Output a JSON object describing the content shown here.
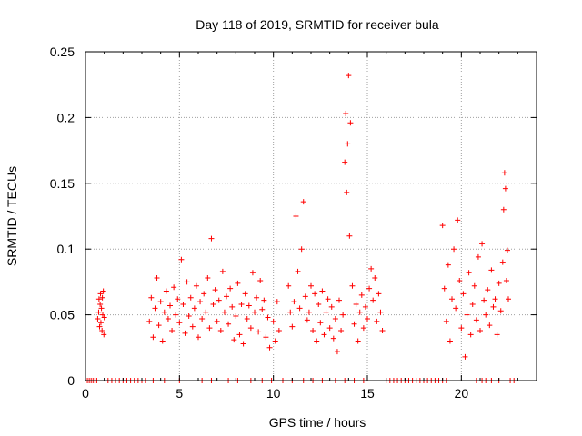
{
  "chart_data": {
    "type": "scatter",
    "title": "Day 118 of 2019, SRMTID for receiver bula",
    "xlabel": "GPS time / hours",
    "ylabel": "SRMTID / TECUs",
    "xlim": [
      0,
      24
    ],
    "ylim": [
      0,
      0.25
    ],
    "x_ticks": [
      0,
      5,
      10,
      15,
      20
    ],
    "x_tick_labels": [
      "0",
      "5",
      "10",
      "15",
      "20"
    ],
    "y_ticks": [
      0,
      0.05,
      0.1,
      0.15,
      0.2,
      0.25
    ],
    "y_tick_labels": [
      "0",
      "0.05",
      "0.1",
      "0.15",
      "0.2",
      "0.25"
    ],
    "grid": true,
    "marker": "+",
    "color": "#ff0000",
    "series": [
      {
        "name": "SRMTID",
        "points": [
          [
            0.1,
            0
          ],
          [
            0.2,
            0
          ],
          [
            0.3,
            0
          ],
          [
            0.4,
            0
          ],
          [
            0.5,
            0
          ],
          [
            0.6,
            0
          ],
          [
            0.65,
            0.047
          ],
          [
            0.7,
            0.052
          ],
          [
            0.72,
            0.062
          ],
          [
            0.75,
            0.041
          ],
          [
            0.78,
            0.058
          ],
          [
            0.8,
            0.066
          ],
          [
            0.82,
            0.044
          ],
          [
            0.85,
            0.055
          ],
          [
            0.88,
            0.038
          ],
          [
            0.9,
            0.063
          ],
          [
            0.92,
            0.05
          ],
          [
            0.95,
            0.068
          ],
          [
            0.98,
            0.035
          ],
          [
            1.0,
            0.048
          ],
          [
            1.2,
            0
          ],
          [
            1.4,
            0
          ],
          [
            1.6,
            0
          ],
          [
            1.8,
            0
          ],
          [
            2.0,
            0
          ],
          [
            2.2,
            0
          ],
          [
            2.4,
            0
          ],
          [
            2.6,
            0
          ],
          [
            2.8,
            0
          ],
          [
            3.0,
            0
          ],
          [
            3.2,
            0
          ],
          [
            3.4,
            0.045
          ],
          [
            3.5,
            0.063
          ],
          [
            3.6,
            0.033
          ],
          [
            3.7,
            0.055
          ],
          [
            3.8,
            0.078
          ],
          [
            3.9,
            0.042
          ],
          [
            4.0,
            0.06
          ],
          [
            4.1,
            0.03
          ],
          [
            4.2,
            0.052
          ],
          [
            4.3,
            0.068
          ],
          [
            4.4,
            0.047
          ],
          [
            4.5,
            0.057
          ],
          [
            4.6,
            0.038
          ],
          [
            4.7,
            0.071
          ],
          [
            4.8,
            0.05
          ],
          [
            4.9,
            0.062
          ],
          [
            5.0,
            0.044
          ],
          [
            5.1,
            0.092
          ],
          [
            5.2,
            0.058
          ],
          [
            5.3,
            0.036
          ],
          [
            5.4,
            0.075
          ],
          [
            5.5,
            0.049
          ],
          [
            5.6,
            0.063
          ],
          [
            5.7,
            0.041
          ],
          [
            5.8,
            0.055
          ],
          [
            5.9,
            0.072
          ],
          [
            6.0,
            0.033
          ],
          [
            6.1,
            0.06
          ],
          [
            6.2,
            0.047
          ],
          [
            6.3,
            0.066
          ],
          [
            6.4,
            0.052
          ],
          [
            6.5,
            0.078
          ],
          [
            6.6,
            0.04
          ],
          [
            6.7,
            0.108
          ],
          [
            6.8,
            0.058
          ],
          [
            6.9,
            0.069
          ],
          [
            7.0,
            0.045
          ],
          [
            7.1,
            0.061
          ],
          [
            7.2,
            0.038
          ],
          [
            7.3,
            0.083
          ],
          [
            7.4,
            0.052
          ],
          [
            7.5,
            0.064
          ],
          [
            7.6,
            0.043
          ],
          [
            7.7,
            0.07
          ],
          [
            7.8,
            0.056
          ],
          [
            7.9,
            0.031
          ],
          [
            8.0,
            0.049
          ],
          [
            8.1,
            0.074
          ],
          [
            8.2,
            0.035
          ],
          [
            8.3,
            0.058
          ],
          [
            8.4,
            0.028
          ],
          [
            8.5,
            0.066
          ],
          [
            8.6,
            0.047
          ],
          [
            8.7,
            0.057
          ],
          [
            8.8,
            0.04
          ],
          [
            8.9,
            0.082
          ],
          [
            9.0,
            0.052
          ],
          [
            9.1,
            0.063
          ],
          [
            9.2,
            0.037
          ],
          [
            9.3,
            0.076
          ],
          [
            9.4,
            0.054
          ],
          [
            9.5,
            0.061
          ],
          [
            9.6,
            0.033
          ],
          [
            9.7,
            0.048
          ],
          [
            9.8,
            0.025
          ],
          [
            3.6,
            0
          ],
          [
            4.2,
            0
          ],
          [
            5.0,
            0
          ],
          [
            6.2,
            0
          ],
          [
            6.7,
            0
          ],
          [
            7.6,
            0
          ],
          [
            8.1,
            0
          ],
          [
            8.8,
            0
          ],
          [
            9.4,
            0
          ],
          [
            9.9,
            0
          ],
          [
            10.0,
            0.045
          ],
          [
            10.1,
            0.03
          ],
          [
            10.2,
            0.06
          ],
          [
            10.3,
            0.038
          ],
          [
            10.8,
            0.072
          ],
          [
            10.9,
            0.052
          ],
          [
            11.0,
            0.041
          ],
          [
            11.1,
            0.06
          ],
          [
            11.2,
            0.125
          ],
          [
            11.3,
            0.083
          ],
          [
            11.4,
            0.055
          ],
          [
            11.5,
            0.1
          ],
          [
            11.6,
            0.136
          ],
          [
            11.7,
            0.064
          ],
          [
            11.8,
            0.046
          ],
          [
            11.9,
            0.052
          ],
          [
            12.0,
            0.072
          ],
          [
            12.1,
            0.038
          ],
          [
            12.2,
            0.066
          ],
          [
            12.3,
            0.03
          ],
          [
            12.4,
            0.058
          ],
          [
            12.5,
            0.044
          ],
          [
            12.6,
            0.068
          ],
          [
            12.7,
            0.035
          ],
          [
            12.8,
            0.052
          ],
          [
            12.9,
            0.062
          ],
          [
            13.0,
            0.04
          ],
          [
            13.1,
            0.056
          ],
          [
            13.2,
            0.032
          ],
          [
            13.3,
            0.047
          ],
          [
            13.4,
            0.022
          ],
          [
            13.5,
            0.061
          ],
          [
            13.6,
            0.038
          ],
          [
            13.7,
            0.05
          ],
          [
            13.8,
            0.166
          ],
          [
            13.85,
            0.203
          ],
          [
            13.9,
            0.143
          ],
          [
            13.95,
            0.18
          ],
          [
            14.0,
            0.232
          ],
          [
            14.05,
            0.11
          ],
          [
            14.1,
            0.196
          ],
          [
            14.2,
            0.072
          ],
          [
            14.3,
            0.043
          ],
          [
            14.4,
            0.058
          ],
          [
            14.5,
            0.03
          ],
          [
            14.6,
            0.052
          ],
          [
            14.7,
            0.065
          ],
          [
            14.8,
            0.04
          ],
          [
            14.9,
            0.056
          ],
          [
            15.0,
            0.047
          ],
          [
            15.1,
            0.07
          ],
          [
            15.2,
            0.085
          ],
          [
            15.3,
            0.061
          ],
          [
            15.4,
            0.078
          ],
          [
            15.5,
            0.045
          ],
          [
            15.6,
            0.066
          ],
          [
            15.7,
            0.052
          ],
          [
            15.8,
            0.038
          ],
          [
            10.5,
            0
          ],
          [
            11.0,
            0
          ],
          [
            11.6,
            0
          ],
          [
            12.1,
            0
          ],
          [
            12.6,
            0
          ],
          [
            13.3,
            0
          ],
          [
            13.8,
            0
          ],
          [
            14.3,
            0
          ],
          [
            14.8,
            0
          ],
          [
            16.0,
            0
          ],
          [
            16.2,
            0
          ],
          [
            16.4,
            0
          ],
          [
            16.6,
            0
          ],
          [
            16.8,
            0
          ],
          [
            17.0,
            0
          ],
          [
            17.2,
            0
          ],
          [
            17.4,
            0
          ],
          [
            17.6,
            0
          ],
          [
            17.8,
            0
          ],
          [
            18.0,
            0
          ],
          [
            18.2,
            0
          ],
          [
            18.4,
            0
          ],
          [
            18.6,
            0
          ],
          [
            18.8,
            0
          ],
          [
            19.0,
            0
          ],
          [
            19.2,
            0
          ],
          [
            19.0,
            0.118
          ],
          [
            19.1,
            0.07
          ],
          [
            19.2,
            0.045
          ],
          [
            19.3,
            0.088
          ],
          [
            19.4,
            0.03
          ],
          [
            19.5,
            0.062
          ],
          [
            19.6,
            0.1
          ],
          [
            19.7,
            0.055
          ],
          [
            19.8,
            0.122
          ],
          [
            19.9,
            0.076
          ],
          [
            20.0,
            0.04
          ],
          [
            20.1,
            0.066
          ],
          [
            20.2,
            0.018
          ],
          [
            20.3,
            0.05
          ],
          [
            20.4,
            0.082
          ],
          [
            20.5,
            0.035
          ],
          [
            20.6,
            0.058
          ],
          [
            20.7,
            0.072
          ],
          [
            20.8,
            0.046
          ],
          [
            20.9,
            0.094
          ],
          [
            21.0,
            0.038
          ],
          [
            21.1,
            0.104
          ],
          [
            21.2,
            0.061
          ],
          [
            21.3,
            0.05
          ],
          [
            21.4,
            0.069
          ],
          [
            21.5,
            0.042
          ],
          [
            21.6,
            0.084
          ],
          [
            21.7,
            0.056
          ],
          [
            21.8,
            0.062
          ],
          [
            21.9,
            0.035
          ],
          [
            22.0,
            0.074
          ],
          [
            22.1,
            0.053
          ],
          [
            22.2,
            0.09
          ],
          [
            22.25,
            0.13
          ],
          [
            22.3,
            0.158
          ],
          [
            22.35,
            0.146
          ],
          [
            22.4,
            0.076
          ],
          [
            22.45,
            0.099
          ],
          [
            22.5,
            0.062
          ],
          [
            20.8,
            0
          ],
          [
            21.1,
            0
          ],
          [
            21.3,
            0
          ],
          [
            21.6,
            0
          ],
          [
            22.0,
            0
          ],
          [
            22.6,
            0
          ],
          [
            22.8,
            0
          ]
        ]
      }
    ]
  }
}
